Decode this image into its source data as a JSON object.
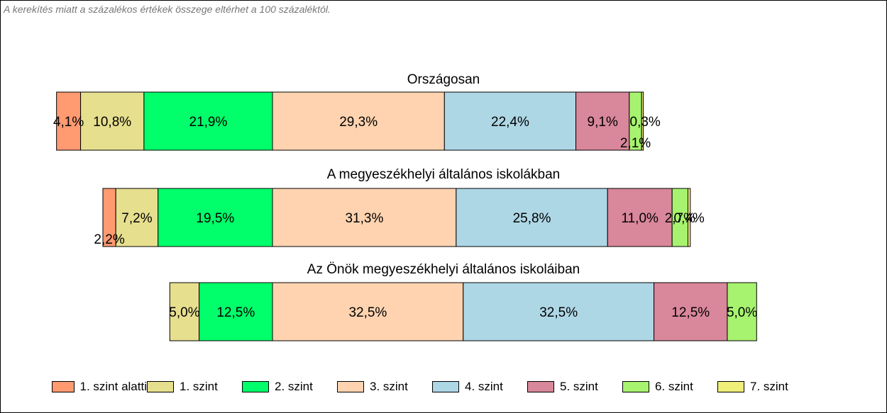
{
  "note": "A kerekítés miatt a  százalékos értékek összege eltérhet a 100 százaléktól.",
  "chart_data": {
    "type": "bar",
    "orientation": "horizontal-stacked",
    "categories": [
      "1. szint alatti",
      "1. szint",
      "2. szint",
      "3. szint",
      "4. szint",
      "5. szint",
      "6. szint",
      "7. szint"
    ],
    "colors": [
      "#ff9a71",
      "#e6df8e",
      "#00ff6a",
      "#ffd3b0",
      "#aed7e6",
      "#d9879a",
      "#a7f370",
      "#efef7a"
    ],
    "bars": [
      {
        "title": "Országosan",
        "values": [
          4.1,
          10.8,
          21.9,
          29.3,
          22.4,
          9.1,
          2.1,
          0.3
        ],
        "labels": [
          "4,1%",
          "10,8%",
          "21,9%",
          "29,3%",
          "22,4%",
          "9,1%",
          "2,1%",
          "0,3%"
        ]
      },
      {
        "title": "A megyeszékhelyi általános iskolákban",
        "values": [
          2.2,
          7.2,
          19.5,
          31.3,
          25.8,
          11.0,
          2.7,
          0.4
        ],
        "labels": [
          "2,2%",
          "7,2%",
          "19,5%",
          "31,3%",
          "25,8%",
          "11,0%",
          "2,7%",
          "0,4%"
        ]
      },
      {
        "title": "Az Önök megyeszékhelyi általános iskoláiban",
        "values": [
          0,
          5.0,
          12.5,
          32.5,
          32.5,
          12.5,
          5.0,
          0
        ],
        "labels": [
          "",
          "5,0%",
          "12,5%",
          "32,5%",
          "32,5%",
          "12,5%",
          "5,0%",
          ""
        ]
      }
    ],
    "alignment": "3. szint starts at common vertical line"
  }
}
